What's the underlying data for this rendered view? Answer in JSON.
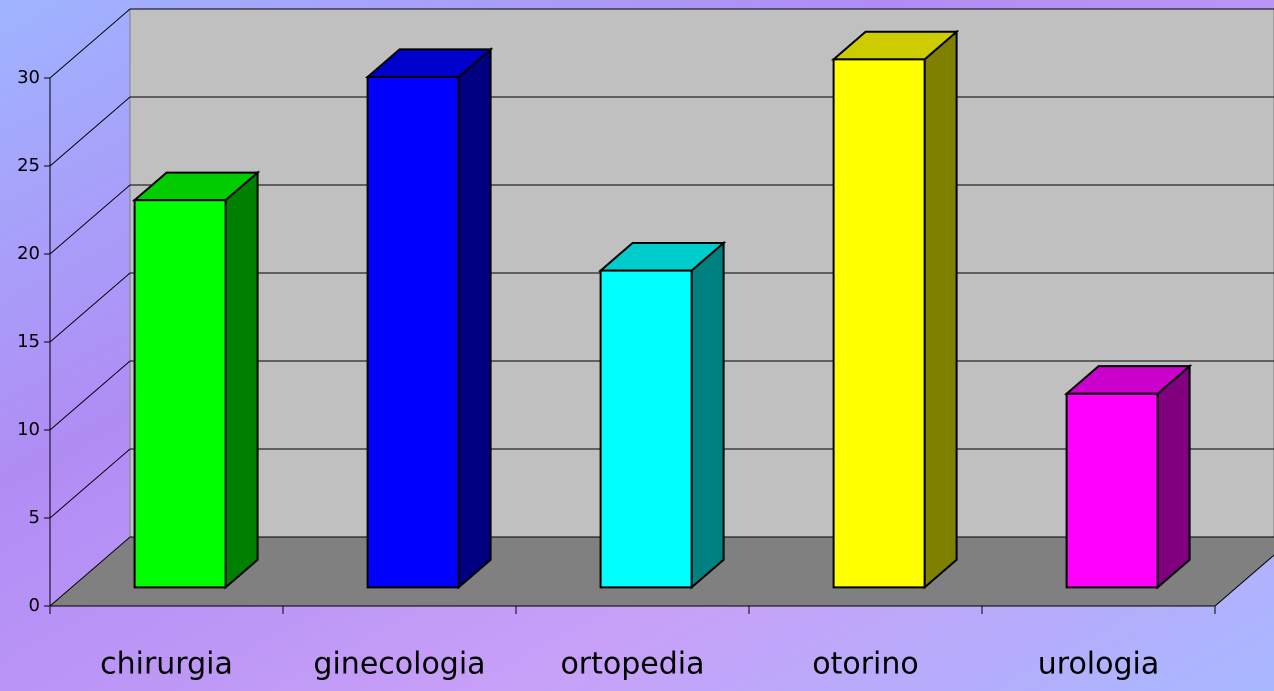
{
  "chart_data": {
    "type": "bar3d",
    "categories": [
      "chirurgia",
      "ginecologia",
      "ortopedia",
      "otorino",
      "urologia"
    ],
    "values": [
      22,
      29,
      18,
      30,
      11
    ],
    "colors": [
      "#00ff00",
      "#0000ff",
      "#00ffff",
      "#ffff00",
      "#ff00ff"
    ],
    "ylim": [
      0,
      30
    ],
    "yticks": [
      0,
      5,
      10,
      15,
      20,
      25,
      30
    ],
    "grid": true
  }
}
